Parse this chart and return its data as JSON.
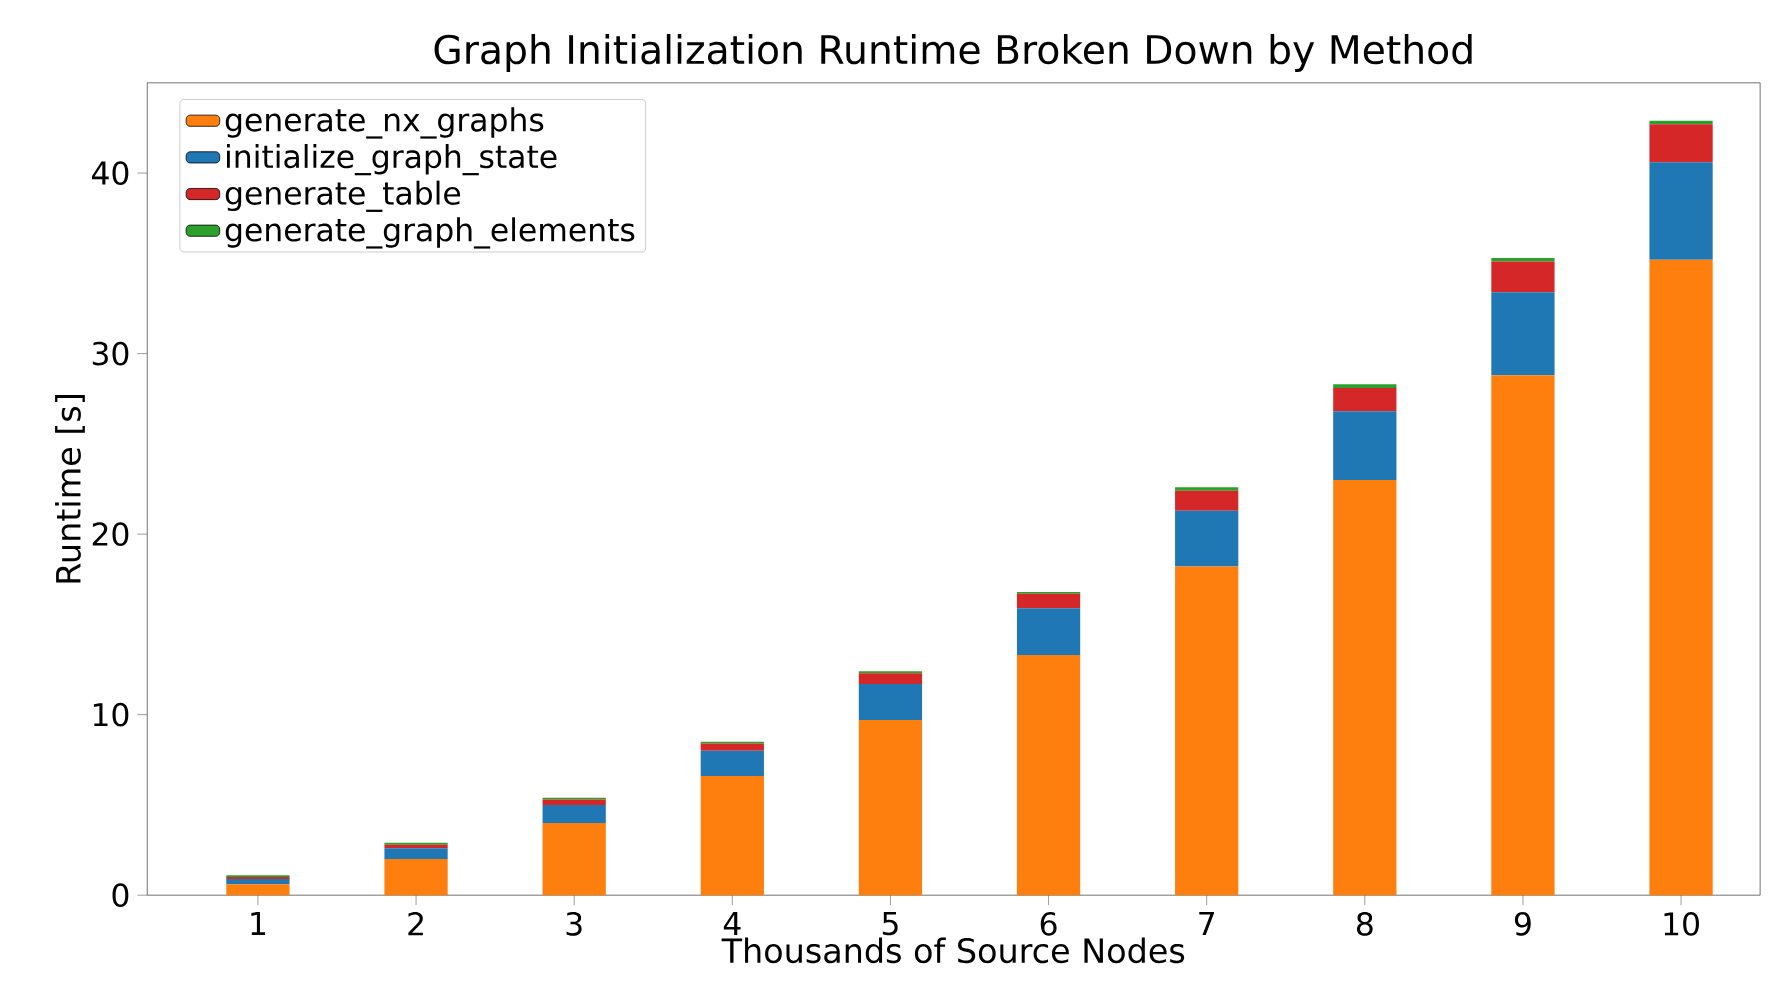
{
  "chart_data": {
    "type": "bar",
    "stacked": true,
    "title": "Graph Initialization Runtime Broken Down by Method",
    "xlabel": "Thousands of Source Nodes",
    "ylabel": "Runtime [s]",
    "categories": [
      "1",
      "2",
      "3",
      "4",
      "5",
      "6",
      "7",
      "8",
      "9",
      "10"
    ],
    "series": [
      {
        "name": "generate_nx_graphs",
        "color": "#ff7f0e",
        "values": [
          0.6,
          2.0,
          4.0,
          6.6,
          9.7,
          13.3,
          18.2,
          23.0,
          28.8,
          35.2
        ]
      },
      {
        "name": "initialize_graph_state",
        "color": "#1f77b4",
        "values": [
          0.3,
          0.6,
          1.0,
          1.4,
          2.0,
          2.6,
          3.1,
          3.8,
          4.6,
          5.4
        ]
      },
      {
        "name": "generate_table",
        "color": "#d62728",
        "values": [
          0.1,
          0.2,
          0.3,
          0.4,
          0.6,
          0.8,
          1.1,
          1.3,
          1.7,
          2.1
        ]
      },
      {
        "name": "generate_graph_elements",
        "color": "#2ca02c",
        "values": [
          0.1,
          0.1,
          0.1,
          0.1,
          0.1,
          0.1,
          0.2,
          0.2,
          0.2,
          0.2
        ]
      }
    ],
    "ylim": [
      0,
      45
    ],
    "yticks": [
      0,
      10,
      20,
      30,
      40
    ],
    "legend": "top left"
  }
}
